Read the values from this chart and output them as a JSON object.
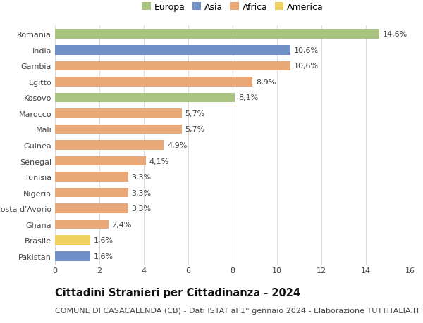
{
  "categories": [
    "Romania",
    "India",
    "Gambia",
    "Egitto",
    "Kosovo",
    "Marocco",
    "Mali",
    "Guinea",
    "Senegal",
    "Tunisia",
    "Nigeria",
    "Costa d'Avorio",
    "Ghana",
    "Brasile",
    "Pakistan"
  ],
  "values": [
    14.6,
    10.6,
    10.6,
    8.9,
    8.1,
    5.7,
    5.7,
    4.9,
    4.1,
    3.3,
    3.3,
    3.3,
    2.4,
    1.6,
    1.6
  ],
  "labels": [
    "14,6%",
    "10,6%",
    "10,6%",
    "8,9%",
    "8,1%",
    "5,7%",
    "5,7%",
    "4,9%",
    "4,1%",
    "3,3%",
    "3,3%",
    "3,3%",
    "2,4%",
    "1,6%",
    "1,6%"
  ],
  "continents": [
    "Europa",
    "Asia",
    "Africa",
    "Africa",
    "Europa",
    "Africa",
    "Africa",
    "Africa",
    "Africa",
    "Africa",
    "Africa",
    "Africa",
    "Africa",
    "America",
    "Asia"
  ],
  "continent_colors": {
    "Europa": "#a8c480",
    "Asia": "#7090c8",
    "Africa": "#e8a878",
    "America": "#f0d060"
  },
  "legend_order": [
    "Europa",
    "Asia",
    "Africa",
    "America"
  ],
  "title": "Cittadini Stranieri per Cittadinanza - 2024",
  "subtitle": "COMUNE DI CASACALENDA (CB) - Dati ISTAT al 1° gennaio 2024 - Elaborazione TUTTITALIA.IT",
  "xlim": [
    0,
    16
  ],
  "xticks": [
    0,
    2,
    4,
    6,
    8,
    10,
    12,
    14,
    16
  ],
  "background_color": "#ffffff",
  "grid_color": "#dddddd",
  "title_fontsize": 10.5,
  "subtitle_fontsize": 8,
  "label_fontsize": 8,
  "tick_fontsize": 8,
  "legend_fontsize": 9,
  "bar_height": 0.6
}
